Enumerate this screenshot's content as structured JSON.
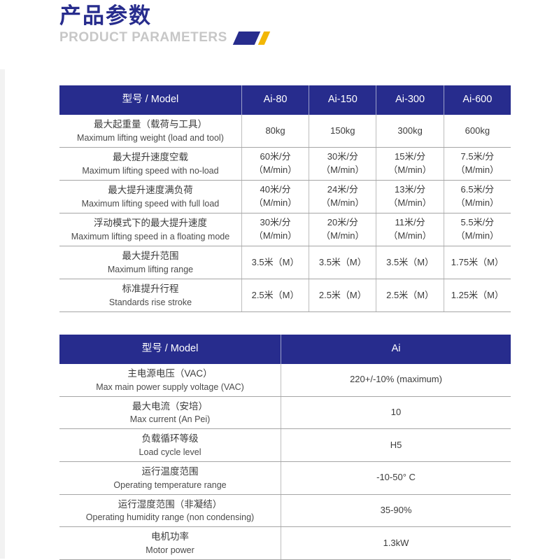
{
  "page": {
    "title_zh": "产品参数",
    "title_en": "PRODUCT PARAMETERS",
    "accent_navy": "#272c8d",
    "accent_gold": "#f2b705",
    "subtitle_color": "#c7c7c7"
  },
  "tables": [
    {
      "name": "model-parameters",
      "header": [
        "型号 / Model",
        "Ai-80",
        "Ai-150",
        "Ai-300",
        "Ai-600"
      ],
      "rows": [
        {
          "label_zh": "最大起重量（载荷与工具）",
          "label_en": "Maximum lifting weight (load and tool)",
          "values": [
            "80kg",
            "150kg",
            "300kg",
            "600kg"
          ]
        },
        {
          "label_zh": "最大提升速度空载",
          "label_en": "Maximum lifting speed with no-load",
          "values": [
            [
              "60米/分",
              "（M/min）"
            ],
            [
              "30米/分",
              "（M/min）"
            ],
            [
              "15米/分",
              "（M/min）"
            ],
            [
              "7.5米/分",
              "（M/min）"
            ]
          ]
        },
        {
          "label_zh": "最大提升速度满负荷",
          "label_en": "Maximum lifting speed with full load",
          "values": [
            [
              "40米/分",
              "（M/min）"
            ],
            [
              "24米/分",
              "（M/min）"
            ],
            [
              "13米/分",
              "（M/min）"
            ],
            [
              "6.5米/分",
              "（M/min）"
            ]
          ]
        },
        {
          "label_zh": "浮动模式下的最大提升速度",
          "label_en": "Maximum lifting speed in a floating mode",
          "values": [
            [
              "30米/分",
              "（M/min）"
            ],
            [
              "20米/分",
              "（M/min）"
            ],
            [
              "11米/分",
              "（M/min）"
            ],
            [
              "5.5米/分",
              "（M/min）"
            ]
          ]
        },
        {
          "label_zh": "最大提升范围",
          "label_en": "Maximum lifting range",
          "values": [
            "3.5米（M）",
            "3.5米（M）",
            "3.5米（M）",
            "1.75米（M）"
          ]
        },
        {
          "label_zh": "标准提升行程",
          "label_en": "Standards rise stroke",
          "values": [
            "2.5米（M）",
            "2.5米（M）",
            "2.5米（M）",
            "1.25米（M）"
          ]
        }
      ]
    },
    {
      "name": "electrical-parameters",
      "header": [
        "型号 / Model",
        "Ai"
      ],
      "rows": [
        {
          "label_zh": "主电源电压（VAC）",
          "label_en": "Max  main power supply voltage (VAC)",
          "values": [
            "220+/-10% (maximum)"
          ]
        },
        {
          "label_zh": "最大电流（安培）",
          "label_en": "Max current (An Pei)",
          "values": [
            "10"
          ]
        },
        {
          "label_zh": "负载循环等级",
          "label_en": "Load cycle level",
          "values": [
            "H5"
          ]
        },
        {
          "label_zh": "运行温度范围",
          "label_en": "Operating temperature range",
          "values": [
            "-10-50° C"
          ]
        },
        {
          "label_zh": "运行湿度范围（非凝结）",
          "label_en": "Operating humidity range (non condensing)",
          "values": [
            "35-90%"
          ]
        },
        {
          "label_zh": "电机功率",
          "label_en": "Motor power",
          "values": [
            "1.3kW"
          ]
        }
      ]
    }
  ]
}
